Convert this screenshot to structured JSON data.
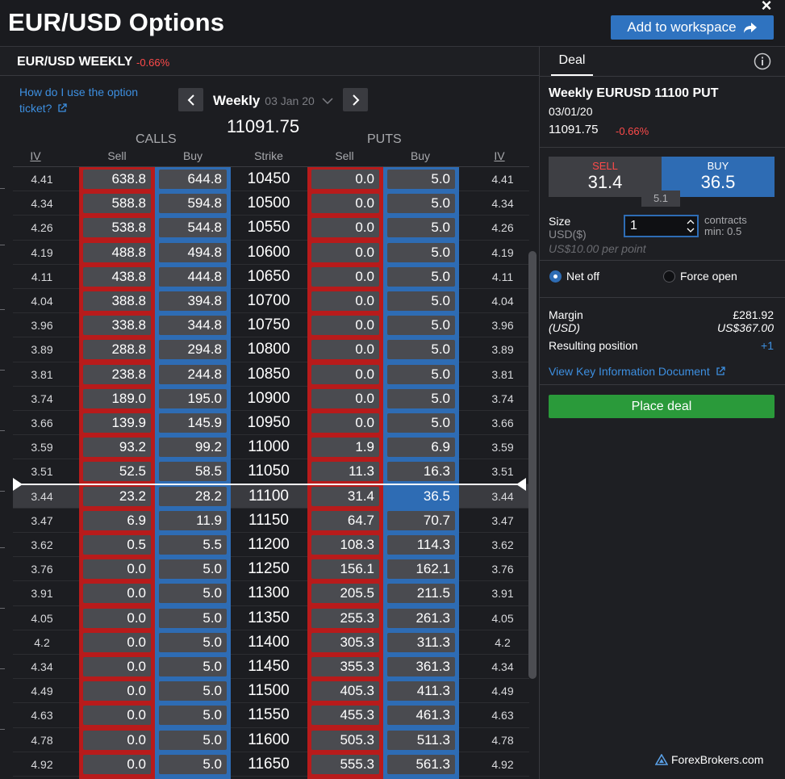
{
  "header": {
    "title": "EUR/USD Options",
    "add_to_workspace": "Add to workspace",
    "close": "×"
  },
  "chain": {
    "title": "EUR/USD WEEKLY",
    "change": "-0.66%",
    "help_link": "How do I use the option ticket?",
    "expiry_label": "Weekly",
    "expiry_date": "03 Jan 20",
    "underlying": "11091.75",
    "calls_label": "CALLS",
    "puts_label": "PUTS",
    "columns": {
      "iv_left": "IV",
      "call_sell": "Sell",
      "call_buy": "Buy",
      "strike": "Strike",
      "put_sell": "Sell",
      "put_buy": "Buy",
      "iv_right": "IV"
    },
    "atm_index": 13,
    "rows": [
      {
        "iv": "4.41",
        "cs": "638.8",
        "cb": "644.8",
        "k": "10450",
        "ps": "0.0",
        "pb": "5.0"
      },
      {
        "iv": "4.34",
        "cs": "588.8",
        "cb": "594.8",
        "k": "10500",
        "ps": "0.0",
        "pb": "5.0"
      },
      {
        "iv": "4.26",
        "cs": "538.8",
        "cb": "544.8",
        "k": "10550",
        "ps": "0.0",
        "pb": "5.0"
      },
      {
        "iv": "4.19",
        "cs": "488.8",
        "cb": "494.8",
        "k": "10600",
        "ps": "0.0",
        "pb": "5.0"
      },
      {
        "iv": "4.11",
        "cs": "438.8",
        "cb": "444.8",
        "k": "10650",
        "ps": "0.0",
        "pb": "5.0"
      },
      {
        "iv": "4.04",
        "cs": "388.8",
        "cb": "394.8",
        "k": "10700",
        "ps": "0.0",
        "pb": "5.0"
      },
      {
        "iv": "3.96",
        "cs": "338.8",
        "cb": "344.8",
        "k": "10750",
        "ps": "0.0",
        "pb": "5.0"
      },
      {
        "iv": "3.89",
        "cs": "288.8",
        "cb": "294.8",
        "k": "10800",
        "ps": "0.0",
        "pb": "5.0"
      },
      {
        "iv": "3.81",
        "cs": "238.8",
        "cb": "244.8",
        "k": "10850",
        "ps": "0.0",
        "pb": "5.0"
      },
      {
        "iv": "3.74",
        "cs": "189.0",
        "cb": "195.0",
        "k": "10900",
        "ps": "0.0",
        "pb": "5.0"
      },
      {
        "iv": "3.66",
        "cs": "139.9",
        "cb": "145.9",
        "k": "10950",
        "ps": "0.0",
        "pb": "5.0"
      },
      {
        "iv": "3.59",
        "cs": "93.2",
        "cb": "99.2",
        "k": "11000",
        "ps": "1.9",
        "pb": "6.9"
      },
      {
        "iv": "3.51",
        "cs": "52.5",
        "cb": "58.5",
        "k": "11050",
        "ps": "11.3",
        "pb": "16.3"
      },
      {
        "iv": "3.44",
        "cs": "23.2",
        "cb": "28.2",
        "k": "11100",
        "ps": "31.4",
        "pb": "36.5"
      },
      {
        "iv": "3.47",
        "cs": "6.9",
        "cb": "11.9",
        "k": "11150",
        "ps": "64.7",
        "pb": "70.7"
      },
      {
        "iv": "3.62",
        "cs": "0.5",
        "cb": "5.5",
        "k": "11200",
        "ps": "108.3",
        "pb": "114.3"
      },
      {
        "iv": "3.76",
        "cs": "0.0",
        "cb": "5.0",
        "k": "11250",
        "ps": "156.1",
        "pb": "162.1"
      },
      {
        "iv": "3.91",
        "cs": "0.0",
        "cb": "5.0",
        "k": "11300",
        "ps": "205.5",
        "pb": "211.5"
      },
      {
        "iv": "4.05",
        "cs": "0.0",
        "cb": "5.0",
        "k": "11350",
        "ps": "255.3",
        "pb": "261.3"
      },
      {
        "iv": "4.2",
        "cs": "0.0",
        "cb": "5.0",
        "k": "11400",
        "ps": "305.3",
        "pb": "311.3"
      },
      {
        "iv": "4.34",
        "cs": "0.0",
        "cb": "5.0",
        "k": "11450",
        "ps": "355.3",
        "pb": "361.3"
      },
      {
        "iv": "4.49",
        "cs": "0.0",
        "cb": "5.0",
        "k": "11500",
        "ps": "405.3",
        "pb": "411.3"
      },
      {
        "iv": "4.63",
        "cs": "0.0",
        "cb": "5.0",
        "k": "11550",
        "ps": "455.3",
        "pb": "461.3"
      },
      {
        "iv": "4.78",
        "cs": "0.0",
        "cb": "5.0",
        "k": "11600",
        "ps": "505.3",
        "pb": "511.3"
      },
      {
        "iv": "4.92",
        "cs": "0.0",
        "cb": "5.0",
        "k": "11650",
        "ps": "555.3",
        "pb": "561.3"
      },
      {
        "iv": "",
        "cs": "",
        "cb": "",
        "k": "",
        "ps": "",
        "pb": ""
      }
    ]
  },
  "ticket": {
    "tab": "Deal",
    "title": "Weekly EURUSD 11100 PUT",
    "date": "03/01/20",
    "price": "11091.75",
    "change": "-0.66%",
    "sell_label": "SELL",
    "sell_value": "31.4",
    "buy_label": "BUY",
    "buy_value": "36.5",
    "spread": "5.1",
    "size_label": "Size",
    "size_unit": "USD($)",
    "size_value": "1",
    "size_note": "US$10.00 per point",
    "contracts": "contracts",
    "min": "min: 0.5",
    "net_off": "Net off",
    "force_open": "Force open",
    "margin_label": "Margin",
    "margin_currency": "(USD)",
    "margin_gbp": "£281.92",
    "margin_usd": "US$367.00",
    "resulting_label": "Resulting position",
    "resulting_value": "+1",
    "kid_link": "View Key Information Document",
    "place_deal": "Place deal"
  },
  "watermark": "ForexBrokers.com",
  "colors": {
    "sell": "#b81b1b",
    "buy": "#2e6cb4",
    "negative": "#ff4a4a",
    "link": "#3d8fe0",
    "place": "#2a9a3a"
  }
}
